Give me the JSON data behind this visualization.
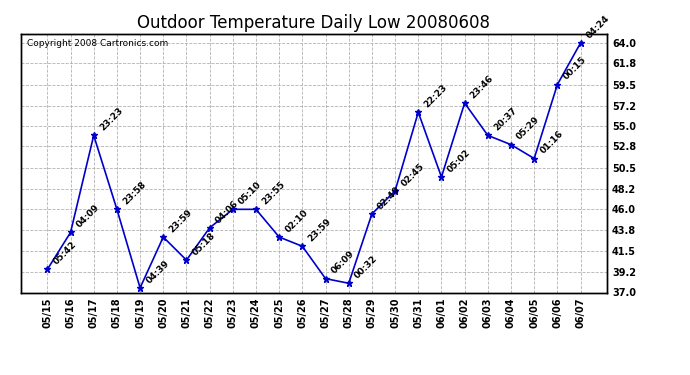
{
  "title": "Outdoor Temperature Daily Low 20080608",
  "copyright": "Copyright 2008 Cartronics.com",
  "x_labels": [
    "05/15",
    "05/16",
    "05/17",
    "05/18",
    "05/19",
    "05/20",
    "05/21",
    "05/22",
    "05/23",
    "05/24",
    "05/25",
    "05/26",
    "05/27",
    "05/28",
    "05/29",
    "05/30",
    "05/31",
    "06/01",
    "06/02",
    "06/03",
    "06/04",
    "06/05",
    "06/06",
    "06/07"
  ],
  "y_values": [
    39.5,
    43.5,
    54.0,
    46.0,
    37.5,
    43.0,
    40.5,
    44.0,
    46.0,
    46.0,
    43.0,
    42.0,
    38.5,
    38.0,
    45.5,
    48.0,
    56.5,
    49.5,
    57.5,
    54.0,
    53.0,
    51.5,
    59.5,
    64.0
  ],
  "time_labels": [
    "05:42",
    "04:09",
    "23:23",
    "23:58",
    "04:39",
    "23:59",
    "05:18",
    "04:06",
    "05:10",
    "23:55",
    "02:10",
    "23:59",
    "06:09",
    "00:32",
    "02:49",
    "02:45",
    "22:23",
    "05:02",
    "23:46",
    "20:37",
    "05:29",
    "01:16",
    "00:15",
    "04:24"
  ],
  "ylim": [
    37.0,
    65.0
  ],
  "y_ticks": [
    37.0,
    39.2,
    41.5,
    43.8,
    46.0,
    48.2,
    50.5,
    52.8,
    55.0,
    57.2,
    59.5,
    61.8,
    64.0
  ],
  "line_color": "#0000cc",
  "marker_color": "#0000cc",
  "background_color": "#ffffff",
  "plot_bg_color": "#ffffff",
  "grid_color": "#aaaaaa",
  "title_fontsize": 12,
  "label_fontsize": 6.5,
  "tick_fontsize": 7,
  "copyright_fontsize": 6.5
}
